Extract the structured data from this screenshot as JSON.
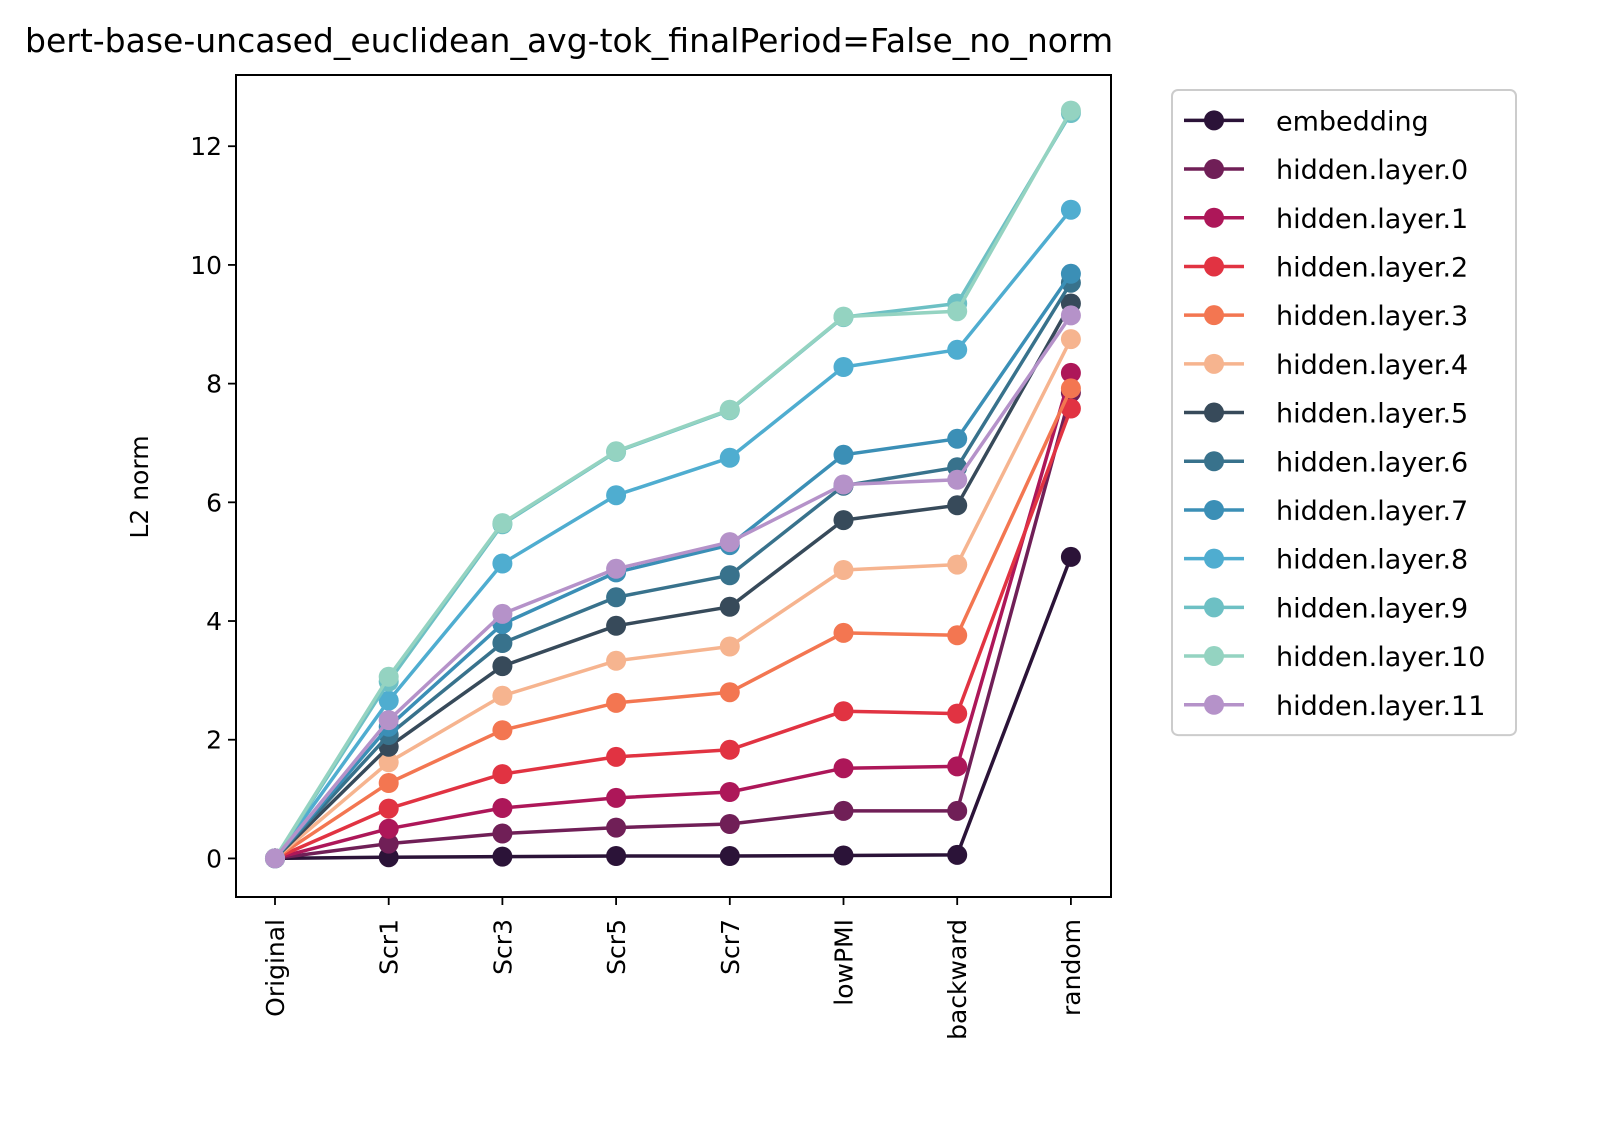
{
  "chart_data": {
    "type": "line",
    "title": "bert-base-uncased_euclidean_avg-tok_finalPeriod=False_no_norm",
    "xlabel": "",
    "ylabel": "L2 norm",
    "categories": [
      "Original",
      "Scr1",
      "Scr3",
      "Scr5",
      "Scr7",
      "lowPMI",
      "backward",
      "random"
    ],
    "ylim": [
      -0.65,
      13.2
    ],
    "yticks": [
      0,
      2,
      4,
      6,
      8,
      10,
      12
    ],
    "yticks_labels": [
      "0",
      "2",
      "4",
      "6",
      "8",
      "10",
      "12"
    ],
    "legend_position": "outside-right-top",
    "grid": false,
    "series": [
      {
        "name": "embedding",
        "color": "#2b1338",
        "values": [
          0,
          0.02,
          0.03,
          0.04,
          0.04,
          0.05,
          0.06,
          5.08
        ]
      },
      {
        "name": "hidden.layer.0",
        "color": "#701f57",
        "values": [
          0,
          0.25,
          0.42,
          0.52,
          0.58,
          0.8,
          0.8,
          7.85
        ]
      },
      {
        "name": "hidden.layer.1",
        "color": "#ad1759",
        "values": [
          0,
          0.5,
          0.85,
          1.02,
          1.12,
          1.52,
          1.55,
          8.18
        ]
      },
      {
        "name": "hidden.layer.2",
        "color": "#e13342",
        "values": [
          0,
          0.84,
          1.42,
          1.71,
          1.83,
          2.48,
          2.44,
          7.58
        ]
      },
      {
        "name": "hidden.layer.3",
        "color": "#f37651",
        "values": [
          0,
          1.27,
          2.16,
          2.62,
          2.8,
          3.8,
          3.76,
          7.92
        ]
      },
      {
        "name": "hidden.layer.4",
        "color": "#f6b48f",
        "values": [
          0,
          1.62,
          2.74,
          3.33,
          3.57,
          4.86,
          4.95,
          8.75
        ]
      },
      {
        "name": "hidden.layer.5",
        "color": "#374a5a",
        "values": [
          0,
          1.88,
          3.24,
          3.92,
          4.24,
          5.7,
          5.95,
          9.35
        ]
      },
      {
        "name": "hidden.layer.6",
        "color": "#38728c",
        "values": [
          0,
          2.08,
          3.63,
          4.4,
          4.77,
          6.28,
          6.59,
          9.7
        ]
      },
      {
        "name": "hidden.layer.7",
        "color": "#3b8fb6",
        "values": [
          0,
          2.22,
          3.95,
          4.82,
          5.28,
          6.8,
          7.07,
          9.85
        ]
      },
      {
        "name": "hidden.layer.8",
        "color": "#4fadd0",
        "values": [
          0,
          2.66,
          4.97,
          6.12,
          6.75,
          8.28,
          8.57,
          10.93
        ]
      },
      {
        "name": "hidden.layer.9",
        "color": "#6dc0c4",
        "values": [
          0,
          2.98,
          5.63,
          6.85,
          7.55,
          9.12,
          9.35,
          12.56
        ]
      },
      {
        "name": "hidden.layer.10",
        "color": "#94d3c1",
        "values": [
          0,
          3.06,
          5.65,
          6.86,
          7.56,
          9.13,
          9.22,
          12.6
        ]
      },
      {
        "name": "hidden.layer.11",
        "color": "#b592c9",
        "values": [
          0,
          2.33,
          4.12,
          4.88,
          5.33,
          6.3,
          6.38,
          9.15
        ]
      }
    ]
  }
}
